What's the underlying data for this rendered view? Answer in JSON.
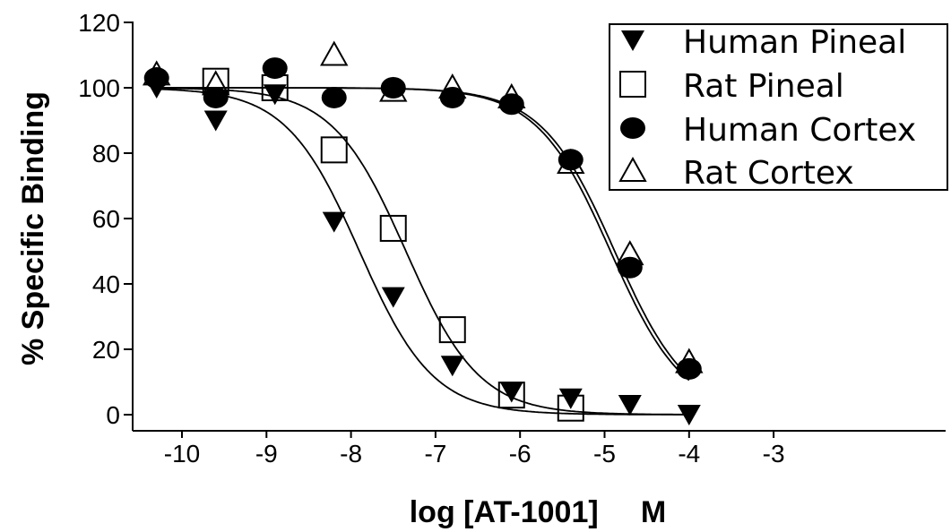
{
  "chart_data": {
    "type": "scatter",
    "xlabel": "log [AT-1001]     M",
    "ylabel": "% Specific Binding",
    "xlim": [
      -10.5,
      -2
    ],
    "ylim": [
      -5,
      120
    ],
    "xticks": [
      -10,
      -9,
      -8,
      -7,
      -6,
      -5,
      -4,
      -3
    ],
    "yticks": [
      0,
      20,
      40,
      60,
      80,
      100,
      120
    ],
    "legend_position": "top-right",
    "series": [
      {
        "name": "Human Pineal",
        "marker": "triangle-down-filled",
        "x": [
          -10.3,
          -9.6,
          -8.9,
          -8.2,
          -7.5,
          -6.8,
          -6.1,
          -5.4,
          -4.7,
          -4.0
        ],
        "y": [
          100,
          90,
          98,
          59,
          36,
          15,
          7,
          5,
          3,
          0
        ]
      },
      {
        "name": "Rat Pineal",
        "marker": "square-open",
        "x": [
          -9.6,
          -8.9,
          -8.2,
          -7.5,
          -6.8,
          -6.1,
          -5.4
        ],
        "y": [
          102,
          100,
          81,
          57,
          26,
          6,
          2
        ]
      },
      {
        "name": "Human Cortex",
        "marker": "circle-filled",
        "x": [
          -10.3,
          -9.6,
          -8.9,
          -8.2,
          -7.5,
          -6.8,
          -6.1,
          -5.4,
          -4.7,
          -4.0
        ],
        "y": [
          103,
          97,
          106,
          97,
          100,
          97,
          95,
          78,
          45,
          14
        ]
      },
      {
        "name": "Rat Cortex",
        "marker": "triangle-up-open",
        "x": [
          -10.3,
          -9.6,
          -8.2,
          -7.5,
          -6.8,
          -6.1,
          -5.4,
          -4.7,
          -4.0
        ],
        "y": [
          104,
          101,
          110,
          99,
          100,
          97,
          77,
          49,
          16
        ]
      }
    ],
    "fits": [
      {
        "series": "Human Pineal",
        "top": 100,
        "bottom": 0,
        "log_ic50": -7.9,
        "hill": 1.0
      },
      {
        "series": "Rat Pineal",
        "top": 100,
        "bottom": 0,
        "log_ic50": -7.35,
        "hill": 1.0
      },
      {
        "series": "Human Cortex",
        "top": 100,
        "bottom": 0,
        "log_ic50": -4.93,
        "hill": 1.0
      },
      {
        "series": "Rat Cortex",
        "top": 100,
        "bottom": 0,
        "log_ic50": -4.88,
        "hill": 1.0
      }
    ]
  }
}
